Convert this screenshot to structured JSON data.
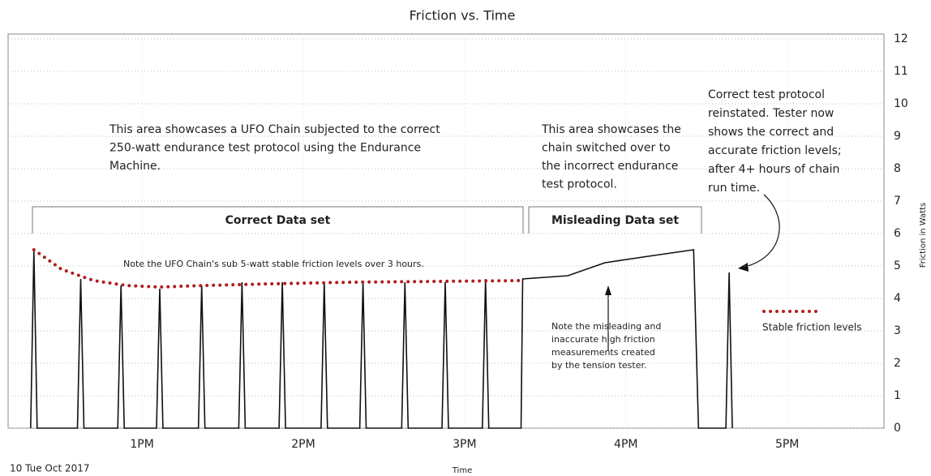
{
  "chart_data": {
    "type": "line",
    "title": "Friction vs. Time",
    "xlabel": "Time",
    "ylabel": "Friction in Watts",
    "date_label": "10 Tue Oct 2017",
    "xlim": [
      12.17,
      17.6
    ],
    "xticks": [
      {
        "value": 13,
        "label": "1PM"
      },
      {
        "value": 14,
        "label": "2PM"
      },
      {
        "value": 15,
        "label": "3PM"
      },
      {
        "value": 16,
        "label": "4PM"
      },
      {
        "value": 17,
        "label": "5PM"
      }
    ],
    "ylim": [
      0,
      12
    ],
    "yticks": [
      0,
      1,
      2,
      3,
      4,
      5,
      6,
      7,
      8,
      9,
      10,
      11,
      12
    ],
    "grid": true,
    "series": [
      {
        "color": "#111111",
        "style": "solid",
        "x": [
          12.31,
          12.33,
          12.35,
          12.6,
          12.62,
          12.64,
          12.85,
          12.87,
          12.89,
          13.09,
          13.11,
          13.13,
          13.35,
          13.37,
          13.39,
          13.6,
          13.62,
          13.64,
          13.85,
          13.87,
          13.89,
          14.11,
          14.13,
          14.15,
          14.35,
          14.37,
          14.39,
          14.61,
          14.63,
          14.65,
          14.86,
          14.88,
          14.9,
          15.11,
          15.13,
          15.15,
          15.35,
          15.36,
          15.64,
          15.87,
          16.14,
          16.42,
          16.45,
          16.62,
          16.64,
          16.66
        ],
        "values": [
          0,
          5.5,
          0,
          0,
          4.6,
          0,
          0,
          4.4,
          0,
          0,
          4.3,
          0,
          0,
          4.4,
          0,
          0,
          4.5,
          0,
          0,
          4.5,
          0,
          0,
          4.5,
          0,
          0,
          4.5,
          0,
          0,
          4.5,
          0,
          0,
          4.5,
          0,
          0,
          4.6,
          0,
          0,
          4.6,
          4.7,
          5.1,
          5.3,
          5.5,
          0,
          0,
          4.8,
          0
        ]
      },
      {
        "name": "Stable friction levels",
        "color": "#b01c1c",
        "style": "dotted",
        "x": [
          12.33,
          12.5,
          12.7,
          12.9,
          13.1,
          13.4,
          13.8,
          14.3,
          15.36
        ],
        "values": [
          5.5,
          4.9,
          4.55,
          4.4,
          4.35,
          4.4,
          4.45,
          4.5,
          4.55
        ]
      }
    ],
    "brackets": [
      {
        "label": "Correct Data set"
      },
      {
        "label": "Misleading Data set"
      }
    ],
    "annotations": [
      {
        "lines": [
          "This area showcases a UFO Chain subjected to the correct",
          "250-watt endurance test protocol using the Endurance",
          "Machine."
        ]
      },
      {
        "lines": [
          "This area showcases the",
          "chain switched over to",
          "the incorrect endurance",
          "test protocol."
        ]
      },
      {
        "lines": [
          "Correct test protocol",
          "reinstated. Tester now",
          "shows the correct and",
          "accurate friction levels;",
          "after 4+ hours of chain",
          "run time."
        ]
      },
      {
        "lines": [
          "Note the UFO Chain's sub 5-watt stable friction levels over 3 hours."
        ]
      },
      {
        "lines": [
          "Note the misleading and",
          "inaccurate high friction",
          "measurements created",
          "by the tension tester."
        ]
      }
    ]
  }
}
